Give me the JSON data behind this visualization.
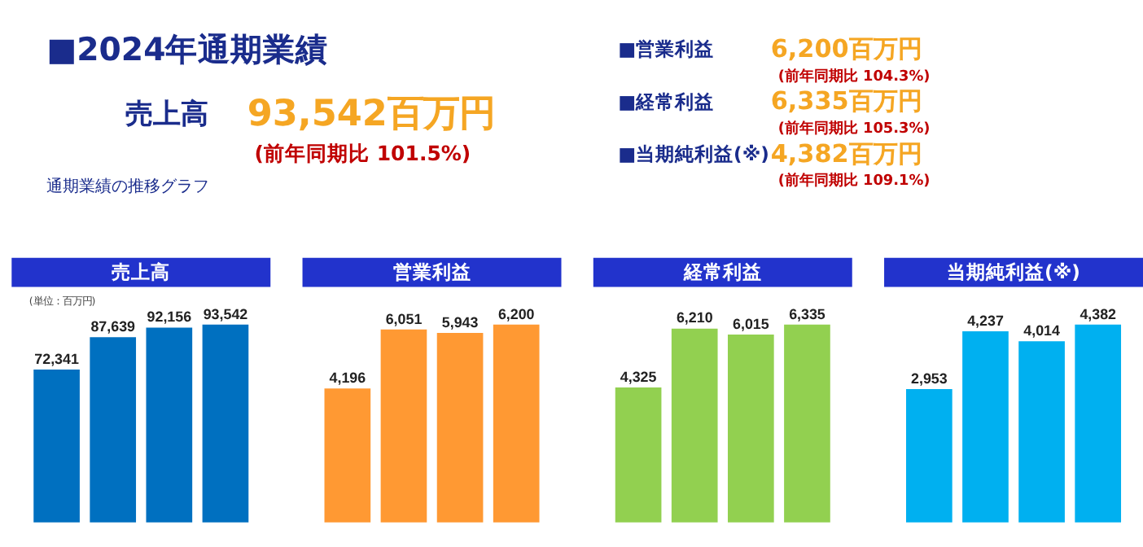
{
  "chart_data": [
    {
      "type": "other",
      "title": "■2024年通期業績",
      "annotations": [
        "売上高",
        "93,542百万円",
        "(前年同期比 101.5%)",
        "■営業利益",
        "6,200百万円",
        "(前年同期比 104.3%)",
        "■経常利益",
        "6,335百万円",
        "(前年同期比 105.3%)",
        "■当期純利益(※)",
        "4,382百万円",
        "(前年同期比 109.1%)",
        "通期業績の推移グラフ"
      ]
    },
    {
      "type": "bar",
      "title": "売上高",
      "categories": [
        null,
        null,
        null,
        null
      ],
      "values": [
        72341,
        87639,
        92156,
        93542
      ],
      "value_labels": [
        "72,341",
        "87,639",
        "92,156",
        "93,542"
      ],
      "color": "#0070c0",
      "annotations": [
        "(単位：百万円)"
      ]
    },
    {
      "type": "bar",
      "title": "営業利益",
      "categories": [
        null,
        null,
        null,
        null
      ],
      "values": [
        4196,
        6051,
        5943,
        6200
      ],
      "value_labels": [
        "4,196",
        "6,051",
        "5,943",
        "6,200"
      ],
      "color": "#ff9933"
    },
    {
      "type": "bar",
      "title": "経常利益",
      "categories": [
        null,
        null,
        null,
        null
      ],
      "values": [
        4325,
        6210,
        6015,
        6335
      ],
      "value_labels": [
        "4,325",
        "6,210",
        "6,015",
        "6,335"
      ],
      "color": "#92d050"
    },
    {
      "type": "bar",
      "title": "当期純利益(※)",
      "categories": [
        null,
        null,
        null,
        null
      ],
      "values": [
        2953,
        4237,
        4014,
        4382
      ],
      "value_labels": [
        "2,953",
        "4,237",
        "4,014",
        "4,382"
      ],
      "color": "#00b0f0"
    }
  ]
}
